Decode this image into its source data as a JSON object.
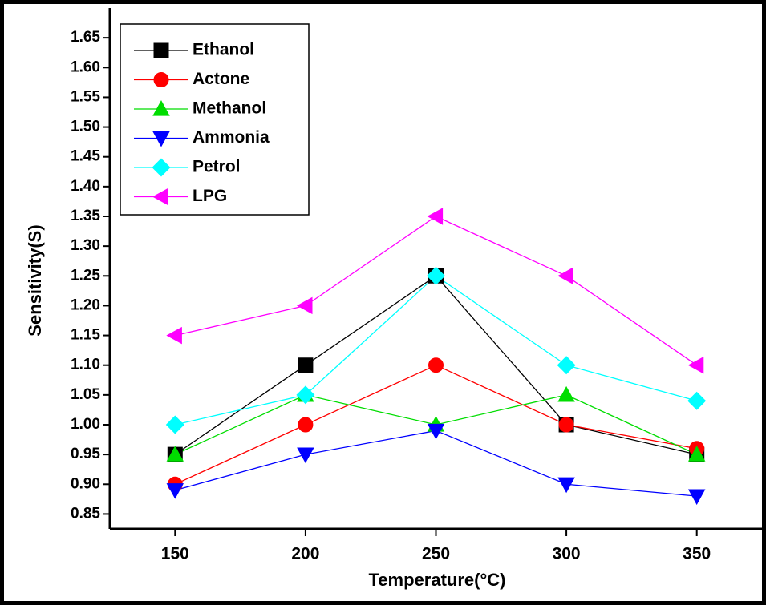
{
  "chart_data": {
    "type": "line",
    "x_label": "Temperature(°C)",
    "y_label": "Sensitivity(S)",
    "x": [
      150,
      200,
      250,
      300,
      350
    ],
    "xlim": [
      125,
      375
    ],
    "xticks": [
      150,
      200,
      250,
      300,
      350
    ],
    "ylim": [
      0.825,
      1.7
    ],
    "yticks": [
      {
        "value": 0.85,
        "label": "0.85"
      },
      {
        "value": 0.9,
        "label": "0.90"
      },
      {
        "value": 0.95,
        "label": "0.95"
      },
      {
        "value": 1.0,
        "label": "1.00"
      },
      {
        "value": 1.05,
        "label": "1.05"
      },
      {
        "value": 1.1,
        "label": "1.10"
      },
      {
        "value": 1.15,
        "label": "1.15"
      },
      {
        "value": 1.2,
        "label": "1.20"
      },
      {
        "value": 1.25,
        "label": "1.25"
      },
      {
        "value": 1.3,
        "label": "1.30"
      },
      {
        "value": 1.35,
        "label": "1.35"
      },
      {
        "value": 1.4,
        "label": "1.40"
      },
      {
        "value": 1.45,
        "label": "1.45"
      },
      {
        "value": 1.5,
        "label": "1.50"
      },
      {
        "value": 1.55,
        "label": "1.55"
      },
      {
        "value": 1.6,
        "label": "1.60"
      },
      {
        "value": 1.65,
        "label": "1.65"
      }
    ],
    "legend": "top-left",
    "series": [
      {
        "name": "Ethanol",
        "color": "#000000",
        "marker": "square",
        "values": [
          0.95,
          1.1,
          1.25,
          1.0,
          0.95
        ]
      },
      {
        "name": "Actone",
        "color": "#ff0000",
        "marker": "circle",
        "values": [
          0.9,
          1.0,
          1.1,
          1.0,
          0.96
        ]
      },
      {
        "name": "Methanol",
        "color": "#00dd00",
        "marker": "triangle-up",
        "values": [
          0.95,
          1.05,
          1.0,
          1.05,
          0.95
        ]
      },
      {
        "name": "Ammonia",
        "color": "#0000ff",
        "marker": "triangle-down",
        "values": [
          0.89,
          0.95,
          0.99,
          0.9,
          0.88
        ]
      },
      {
        "name": "Petrol",
        "color": "#00ffff",
        "marker": "diamond",
        "values": [
          1.0,
          1.05,
          1.25,
          1.1,
          1.04
        ]
      },
      {
        "name": "LPG",
        "color": "#ff00ff",
        "marker": "triangle-left",
        "values": [
          1.15,
          1.2,
          1.35,
          1.25,
          1.1
        ]
      }
    ]
  }
}
